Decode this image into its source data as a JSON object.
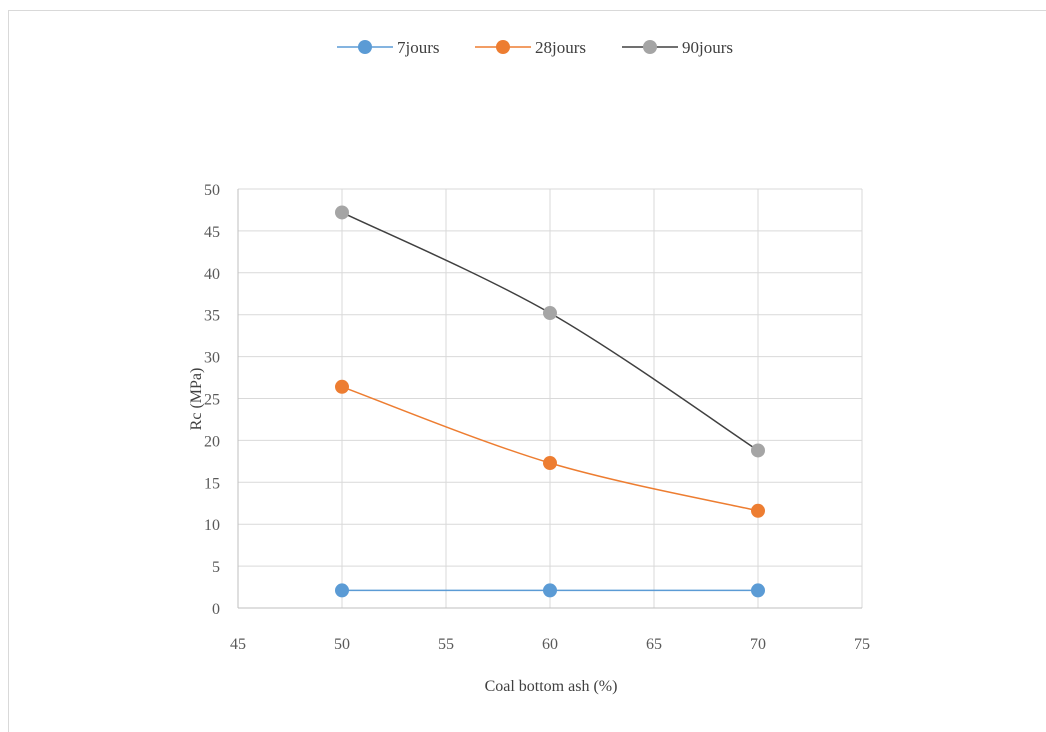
{
  "chart_data": {
    "type": "line",
    "title": "",
    "xlabel": "Coal bottom ash  (%)",
    "ylabel": "Rc (MPa)",
    "x": [
      50,
      60,
      70
    ],
    "xlim": [
      45,
      75
    ],
    "xticks": [
      45,
      50,
      55,
      60,
      65,
      70,
      75
    ],
    "ylim": [
      0,
      50
    ],
    "yticks": [
      0,
      5,
      10,
      15,
      20,
      25,
      30,
      35,
      40,
      45,
      50
    ],
    "grid": true,
    "legend_position": "top",
    "series": [
      {
        "name": "7jours",
        "color": "#5b9bd5",
        "values": [
          2.1,
          2.1,
          2.1
        ]
      },
      {
        "name": "28jours",
        "color": "#ed7d31",
        "values": [
          26.4,
          17.3,
          11.6
        ]
      },
      {
        "name": "90jours",
        "color": "#a5a5a5",
        "line_color": "#404040",
        "values": [
          47.2,
          35.2,
          18.8
        ]
      }
    ]
  }
}
